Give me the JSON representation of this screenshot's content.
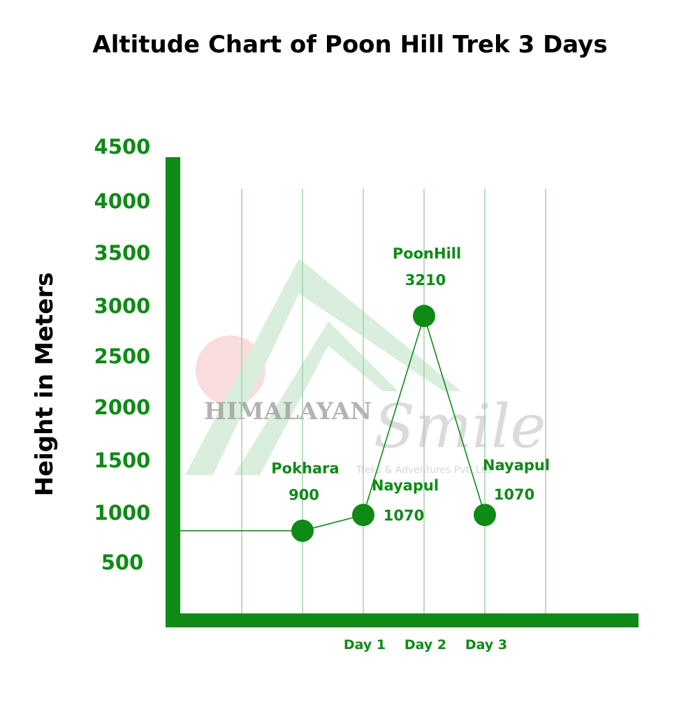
{
  "colors": {
    "primary": "#0f8a16",
    "gridline": "#9fd2a3",
    "background": "#ffffff"
  },
  "watermark": {
    "brand": "HIMALAYAN",
    "script": "Smile",
    "tagline": "Treks & Adventures Pvt. Ltd"
  },
  "chart_data": {
    "type": "line",
    "title": "Altitude Chart of Poon Hill Trek 3 Days",
    "xlabel": "",
    "ylabel": "Height in Meters",
    "ylim": [
      0,
      4500
    ],
    "yticks": [
      500,
      1000,
      1500,
      2000,
      2500,
      3000,
      3500,
      4000,
      4500
    ],
    "x_slots": 7,
    "x_ticks": [
      {
        "slot": 3,
        "label": "Day 1"
      },
      {
        "slot": 4,
        "label": "Day 2"
      },
      {
        "slot": 5,
        "label": "Day 3"
      }
    ],
    "points": [
      {
        "slot": 2,
        "name": "Pokhara",
        "value": 900,
        "label_pos": "above"
      },
      {
        "slot": 3,
        "name": "Nayapul",
        "value": 1070,
        "label_pos": "right"
      },
      {
        "slot": 4,
        "name": "PoonHill",
        "value": 3210,
        "label_pos": "above"
      },
      {
        "slot": 5,
        "name": "Nayapul",
        "value": 1070,
        "label_pos": "above-right"
      }
    ],
    "lead_in_value": 900,
    "grid": true,
    "legend": "none"
  }
}
